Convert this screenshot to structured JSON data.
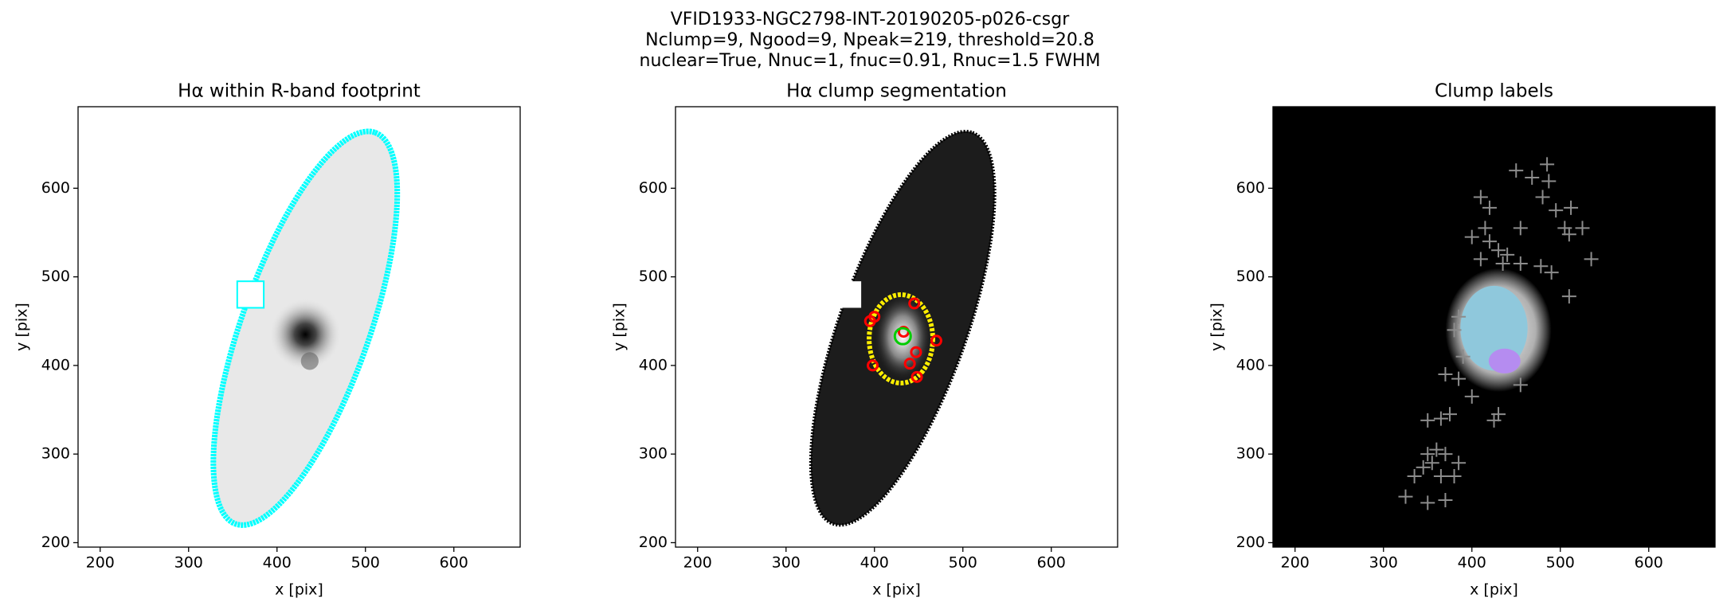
{
  "title": "VFID1933-NGC2798-INT-20190205-p026-csgr",
  "subtitle_lines": [
    "Nclump=9, Ngood=9, Npeak=219, threshold=20.8",
    "nuclear=True, Nnuc=1, fnuc=0.91, Rnuc=1.5 FWHM"
  ],
  "chart_data": [
    {
      "type": "image",
      "title": "Hα within R-band footprint",
      "xlabel": "x [pix]",
      "ylabel": "y [pix]",
      "xlim": [
        175,
        675
      ],
      "ylim": [
        195,
        692
      ],
      "xticks": [
        200,
        300,
        400,
        500,
        600
      ],
      "yticks": [
        200,
        300,
        400,
        500,
        600
      ],
      "cmap": "gray_r",
      "contour_color": "#00ffff"
    },
    {
      "type": "image",
      "title": "Hα clump segmentation",
      "xlabel": "x [pix]",
      "ylabel": "y [pix]",
      "xlim": [
        175,
        675
      ],
      "ylim": [
        195,
        692
      ],
      "xticks": [
        200,
        300,
        400,
        500,
        600
      ],
      "yticks": [
        200,
        300,
        400,
        500,
        600
      ],
      "cmap": "gray",
      "contour_color": "#ffee00",
      "markers": {
        "x": [
          400,
          398,
          433,
          445,
          470,
          447,
          440,
          448,
          395
        ],
        "y": [
          455,
          400,
          438,
          470,
          428,
          415,
          402,
          387,
          450
        ],
        "color": "#ff0000"
      },
      "nuclear": {
        "x": [
          432
        ],
        "y": [
          433
        ],
        "color": "#00cc00"
      }
    },
    {
      "type": "scatter",
      "title": "Clump labels",
      "xlabel": "x [pix]",
      "ylabel": "y [pix]",
      "xlim": [
        175,
        675
      ],
      "ylim": [
        195,
        692
      ],
      "xticks": [
        200,
        300,
        400,
        500,
        600
      ],
      "yticks": [
        200,
        300,
        400,
        500,
        600
      ],
      "background": "#000000",
      "markers": {
        "color": "#8c8c8c",
        "x": [
          485,
          450,
          468,
          487,
          410,
          420,
          480,
          495,
          512,
          455,
          505,
          510,
          525,
          415,
          400,
          420,
          430,
          440,
          410,
          435,
          455,
          478,
          490,
          535,
          510,
          385,
          380,
          390,
          370,
          385,
          400,
          375,
          365,
          350,
          430,
          425,
          455,
          360,
          350,
          370,
          355,
          345,
          385,
          335,
          365,
          380,
          325,
          350,
          370
        ],
        "y": [
          627,
          620,
          612,
          608,
          590,
          578,
          590,
          575,
          578,
          555,
          555,
          548,
          555,
          555,
          545,
          540,
          530,
          525,
          520,
          515,
          515,
          512,
          505,
          520,
          478,
          455,
          440,
          410,
          390,
          385,
          365,
          345,
          340,
          338,
          345,
          338,
          378,
          305,
          300,
          300,
          290,
          285,
          290,
          275,
          275,
          275,
          252,
          245,
          248
        ]
      }
    }
  ]
}
